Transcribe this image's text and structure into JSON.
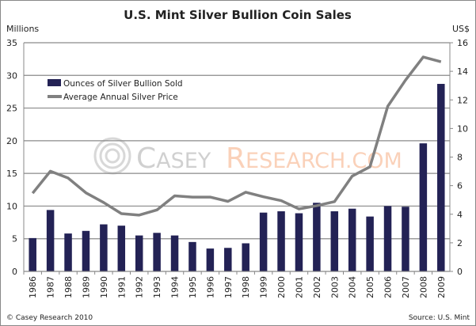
{
  "chart_data": {
    "type": "bar",
    "title": "U.S. Mint Silver Bullion Coin Sales",
    "ylabel": "Millions",
    "y2label": "US$",
    "ylim": [
      0,
      35
    ],
    "y2lim": [
      0,
      16
    ],
    "yticks": [
      0,
      5,
      10,
      15,
      20,
      25,
      30,
      35
    ],
    "y2ticks": [
      0,
      2,
      4,
      6,
      8,
      10,
      12,
      14,
      16
    ],
    "grid": true,
    "legend_placement": "top-left",
    "categories": [
      "1986",
      "1987",
      "1988",
      "1989",
      "1990",
      "1991",
      "1992",
      "1993",
      "1994",
      "1995",
      "1996",
      "1997",
      "1998",
      "1999",
      "2000",
      "2001",
      "2002",
      "2003",
      "2004",
      "2005",
      "2006",
      "2007",
      "2008",
      "2009"
    ],
    "series": [
      {
        "name": "Ounces of Silver Bullion Sold",
        "type": "bar",
        "axis": "left",
        "color": "#232255",
        "values": [
          5.1,
          9.4,
          5.8,
          6.2,
          7.2,
          7.0,
          5.5,
          5.9,
          5.5,
          4.5,
          3.5,
          3.6,
          4.3,
          9.0,
          9.2,
          8.9,
          10.5,
          9.2,
          9.6,
          8.4,
          10.0,
          9.9,
          19.6,
          28.7
        ]
      },
      {
        "name": "Average Annual Silver Price",
        "type": "line",
        "axis": "right",
        "color": "#808080",
        "values": [
          5.47,
          7.01,
          6.53,
          5.5,
          4.82,
          4.04,
          3.94,
          4.3,
          5.29,
          5.2,
          5.2,
          4.9,
          5.54,
          5.22,
          4.95,
          4.37,
          4.6,
          4.88,
          6.67,
          7.32,
          11.55,
          13.38,
          15.0,
          14.67
        ]
      }
    ],
    "footer_left": "© Casey Research 2010",
    "footer_right": "Source: U.S. Mint",
    "watermark": "CASEY RESEARCH.COM"
  }
}
